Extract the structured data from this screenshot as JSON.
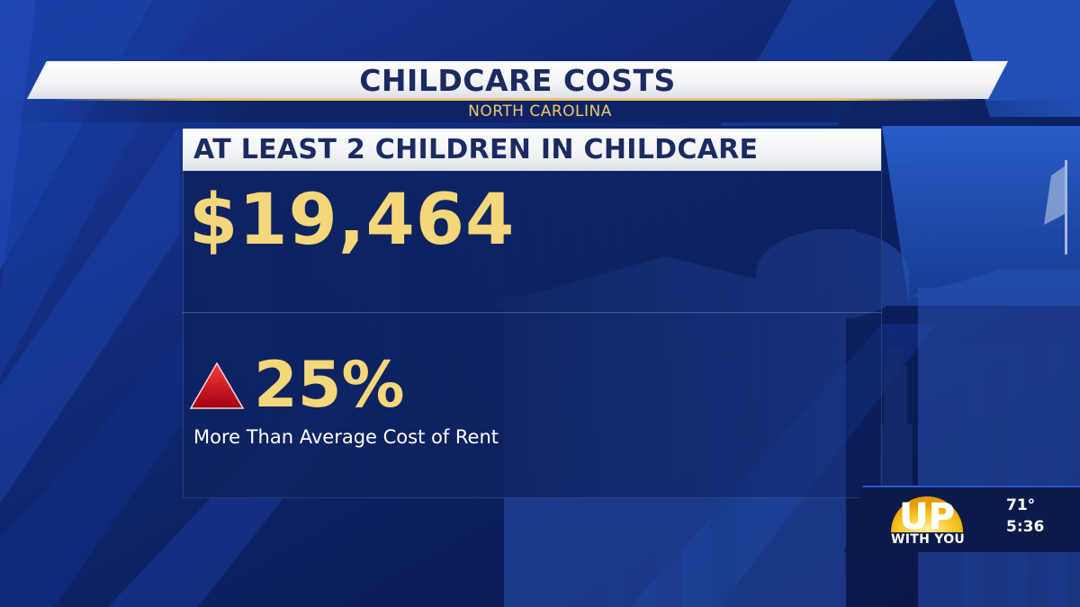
{
  "banner": {
    "title": "CHILDCARE COSTS",
    "subtitle": "NORTH CAROLINA"
  },
  "panel": {
    "header": "AT LEAST 2 CHILDREN IN CHILDCARE",
    "amount": "$19,464",
    "change_icon": "up-triangle-icon",
    "change_value": "25%",
    "change_caption": "More Than Average Cost of Rent"
  },
  "station_bug": {
    "logo_word": "UP",
    "logo_sub": "WITH YOU",
    "temperature": "71°",
    "time": "5:36"
  },
  "colors": {
    "navy": "#1b2a63",
    "gold": "#f4d77a",
    "background_blue": "#0c1f5a",
    "triangle_red": "#c8101a"
  }
}
